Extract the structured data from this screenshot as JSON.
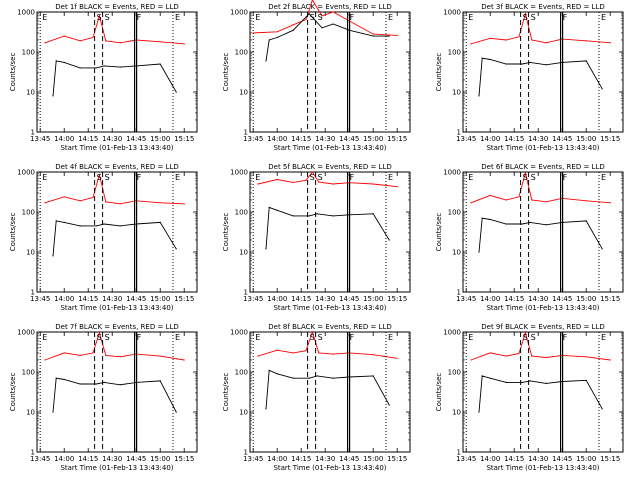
{
  "figure": {
    "rows": 3,
    "cols": 3
  },
  "chart_data": [
    {
      "type": "line",
      "title": "Det 1f BLACK = Events, RED = LLD",
      "xlabel": "Start Time (01-Feb-13 13:43:40)",
      "ylabel": "Counts/sec",
      "y_scale": "log",
      "ylim": [
        1,
        1000
      ],
      "yticks": [
        1,
        10,
        100,
        1000
      ],
      "x_tick_labels": [
        "13:45",
        "14:00",
        "14:15",
        "14:30",
        "14:45",
        "15:00",
        "15:15"
      ],
      "markers": [
        {
          "label": "E",
          "time": "13:45",
          "style": "dotted"
        },
        {
          "label": "S",
          "time": "14:19",
          "style": "dashed"
        },
        {
          "label": "S",
          "time": "14:24",
          "style": "dashed"
        },
        {
          "label": "F",
          "time": "14:44",
          "style": "solid"
        },
        {
          "label": "E",
          "time": "15:08",
          "style": "dotted"
        }
      ],
      "series": [
        {
          "color": "#ff0000",
          "x": [
            "13:48",
            "14:00",
            "14:10",
            "14:18",
            "14:22",
            "14:26",
            "14:35",
            "14:45",
            "15:00",
            "15:15"
          ],
          "values": [
            170,
            250,
            190,
            230,
            800,
            190,
            170,
            200,
            180,
            160
          ]
        },
        {
          "color": "#000000",
          "x": [
            "13:53",
            "13:55",
            "14:00",
            "14:10",
            "14:20",
            "14:25",
            "14:35",
            "14:45",
            "15:00",
            "15:10"
          ],
          "values": [
            8,
            60,
            55,
            40,
            40,
            45,
            42,
            45,
            50,
            10
          ]
        }
      ]
    },
    {
      "type": "line",
      "title": "Det 2f BLACK = Events, RED = LLD",
      "xlabel": "Start Time (01-Feb-13 13:43:40)",
      "ylabel": "Counts/sec",
      "y_scale": "log",
      "ylim": [
        1,
        1000
      ],
      "yticks": [
        1,
        10,
        100,
        1000
      ],
      "x_tick_labels": [
        "13:45",
        "14:00",
        "14:15",
        "14:30",
        "14:45",
        "15:00",
        "15:15"
      ],
      "markers": [
        {
          "label": "E",
          "time": "13:45",
          "style": "dotted"
        },
        {
          "label": "S",
          "time": "14:19",
          "style": "dashed"
        },
        {
          "label": "S",
          "time": "14:24",
          "style": "dashed"
        },
        {
          "label": "F",
          "time": "14:44",
          "style": "solid"
        },
        {
          "label": "E",
          "time": "15:08",
          "style": "dotted"
        }
      ],
      "series": [
        {
          "color": "#ff0000",
          "x": [
            "13:45",
            "14:00",
            "14:10",
            "14:18",
            "14:22",
            "14:28",
            "14:35",
            "14:45",
            "15:00",
            "15:15"
          ],
          "values": [
            300,
            320,
            480,
            650,
            2000,
            800,
            1000,
            600,
            280,
            260
          ]
        },
        {
          "color": "#000000",
          "x": [
            "13:53",
            "13:55",
            "14:00",
            "14:10",
            "14:20",
            "14:28",
            "14:35",
            "14:45",
            "15:00",
            "15:10"
          ],
          "values": [
            60,
            200,
            230,
            350,
            900,
            400,
            500,
            350,
            250,
            250
          ]
        }
      ]
    },
    {
      "type": "line",
      "title": "Det 3f BLACK = Events, RED = LLD",
      "xlabel": "Start Time (01-Feb-13 13:43:40)",
      "ylabel": "Counts/sec",
      "y_scale": "log",
      "ylim": [
        1,
        1000
      ],
      "yticks": [
        1,
        10,
        100,
        1000
      ],
      "x_tick_labels": [
        "13:45",
        "14:00",
        "14:15",
        "14:30",
        "14:45",
        "15:00",
        "15:15"
      ],
      "markers": [
        {
          "label": "E",
          "time": "13:45",
          "style": "dotted"
        },
        {
          "label": "S",
          "time": "14:19",
          "style": "dashed"
        },
        {
          "label": "S",
          "time": "14:24",
          "style": "dashed"
        },
        {
          "label": "F",
          "time": "14:44",
          "style": "solid"
        },
        {
          "label": "E",
          "time": "15:08",
          "style": "dotted"
        }
      ],
      "series": [
        {
          "color": "#ff0000",
          "x": [
            "13:48",
            "14:00",
            "14:10",
            "14:18",
            "14:22",
            "14:26",
            "14:35",
            "14:45",
            "15:00",
            "15:15"
          ],
          "values": [
            160,
            220,
            200,
            240,
            900,
            200,
            170,
            210,
            190,
            170
          ]
        },
        {
          "color": "#000000",
          "x": [
            "13:53",
            "13:55",
            "14:00",
            "14:10",
            "14:20",
            "14:25",
            "14:35",
            "14:45",
            "15:00",
            "15:10"
          ],
          "values": [
            8,
            70,
            65,
            50,
            50,
            55,
            48,
            55,
            60,
            12
          ]
        }
      ]
    },
    {
      "type": "line",
      "title": "Det 4f BLACK = Events, RED = LLD",
      "xlabel": "Start Time (01-Feb-13 13:43:40)",
      "ylabel": "Counts/sec",
      "y_scale": "log",
      "ylim": [
        1,
        1000
      ],
      "yticks": [
        1,
        10,
        100,
        1000
      ],
      "x_tick_labels": [
        "13:45",
        "14:00",
        "14:15",
        "14:30",
        "14:45",
        "15:00",
        "15:15"
      ],
      "markers": [
        {
          "label": "E",
          "time": "13:45",
          "style": "dotted"
        },
        {
          "label": "S",
          "time": "14:19",
          "style": "dashed"
        },
        {
          "label": "S",
          "time": "14:24",
          "style": "dashed"
        },
        {
          "label": "F",
          "time": "14:44",
          "style": "solid"
        },
        {
          "label": "E",
          "time": "15:08",
          "style": "dotted"
        }
      ],
      "series": [
        {
          "color": "#ff0000",
          "x": [
            "13:48",
            "14:00",
            "14:10",
            "14:18",
            "14:22",
            "14:26",
            "14:35",
            "14:45",
            "15:00",
            "15:15"
          ],
          "values": [
            170,
            240,
            190,
            230,
            850,
            180,
            160,
            190,
            170,
            160
          ]
        },
        {
          "color": "#000000",
          "x": [
            "13:53",
            "13:55",
            "14:00",
            "14:10",
            "14:20",
            "14:25",
            "14:35",
            "14:45",
            "15:00",
            "15:10"
          ],
          "values": [
            8,
            60,
            55,
            45,
            45,
            50,
            45,
            50,
            55,
            12
          ]
        }
      ]
    },
    {
      "type": "line",
      "title": "Det 5f BLACK = Events, RED = LLD",
      "xlabel": "Start Time (01-Feb-13 13:43:40)",
      "ylabel": "Counts/sec",
      "y_scale": "log",
      "ylim": [
        1,
        1000
      ],
      "yticks": [
        1,
        10,
        100,
        1000
      ],
      "x_tick_labels": [
        "13:45",
        "14:00",
        "14:15",
        "14:30",
        "14:45",
        "15:00",
        "15:15"
      ],
      "markers": [
        {
          "label": "E",
          "time": "13:45",
          "style": "dotted"
        },
        {
          "label": "S",
          "time": "14:19",
          "style": "dashed"
        },
        {
          "label": "S",
          "time": "14:24",
          "style": "dashed"
        },
        {
          "label": "F",
          "time": "14:44",
          "style": "solid"
        },
        {
          "label": "E",
          "time": "15:08",
          "style": "dotted"
        }
      ],
      "series": [
        {
          "color": "#ff0000",
          "x": [
            "13:48",
            "14:00",
            "14:10",
            "14:18",
            "14:22",
            "14:26",
            "14:35",
            "14:45",
            "15:00",
            "15:15"
          ],
          "values": [
            500,
            650,
            550,
            620,
            1000,
            560,
            500,
            540,
            500,
            430
          ]
        },
        {
          "color": "#000000",
          "x": [
            "13:53",
            "13:55",
            "14:00",
            "14:10",
            "14:20",
            "14:25",
            "14:35",
            "14:45",
            "15:00",
            "15:10"
          ],
          "values": [
            12,
            130,
            110,
            80,
            80,
            90,
            80,
            85,
            90,
            20
          ]
        }
      ]
    },
    {
      "type": "line",
      "title": "Det 6f BLACK = Events, RED = LLD",
      "xlabel": "Start Time (01-Feb-13 13:43:40)",
      "ylabel": "Counts/sec",
      "y_scale": "log",
      "ylim": [
        1,
        1000
      ],
      "yticks": [
        1,
        10,
        100,
        1000
      ],
      "x_tick_labels": [
        "13:45",
        "14:00",
        "14:15",
        "14:30",
        "14:45",
        "15:00",
        "15:15"
      ],
      "markers": [
        {
          "label": "E",
          "time": "13:45",
          "style": "dotted"
        },
        {
          "label": "S",
          "time": "14:19",
          "style": "dashed"
        },
        {
          "label": "S",
          "time": "14:24",
          "style": "dashed"
        },
        {
          "label": "F",
          "time": "14:44",
          "style": "solid"
        },
        {
          "label": "E",
          "time": "15:08",
          "style": "dotted"
        }
      ],
      "series": [
        {
          "color": "#ff0000",
          "x": [
            "13:48",
            "14:00",
            "14:10",
            "14:18",
            "14:22",
            "14:26",
            "14:35",
            "14:45",
            "15:00",
            "15:15"
          ],
          "values": [
            170,
            260,
            200,
            240,
            950,
            200,
            180,
            220,
            190,
            170
          ]
        },
        {
          "color": "#000000",
          "x": [
            "13:53",
            "13:55",
            "14:00",
            "14:10",
            "14:20",
            "14:25",
            "14:35",
            "14:45",
            "15:00",
            "15:10"
          ],
          "values": [
            10,
            70,
            65,
            50,
            50,
            55,
            48,
            55,
            60,
            12
          ]
        }
      ]
    },
    {
      "type": "line",
      "title": "Det 7f BLACK = Events, RED = LLD",
      "xlabel": "Start Time (01-Feb-13 13:43:40)",
      "ylabel": "Counts/sec",
      "y_scale": "log",
      "ylim": [
        1,
        1000
      ],
      "yticks": [
        1,
        10,
        100,
        1000
      ],
      "x_tick_labels": [
        "13:45",
        "14:00",
        "14:15",
        "14:30",
        "14:45",
        "15:00",
        "15:15"
      ],
      "markers": [
        {
          "label": "E",
          "time": "13:45",
          "style": "dotted"
        },
        {
          "label": "S",
          "time": "14:19",
          "style": "dashed"
        },
        {
          "label": "S",
          "time": "14:24",
          "style": "dashed"
        },
        {
          "label": "F",
          "time": "14:44",
          "style": "solid"
        },
        {
          "label": "E",
          "time": "15:08",
          "style": "dotted"
        }
      ],
      "series": [
        {
          "color": "#ff0000",
          "x": [
            "13:48",
            "14:00",
            "14:10",
            "14:18",
            "14:22",
            "14:26",
            "14:35",
            "14:45",
            "15:00",
            "15:15"
          ],
          "values": [
            200,
            300,
            260,
            300,
            950,
            260,
            240,
            280,
            250,
            200
          ]
        },
        {
          "color": "#000000",
          "x": [
            "13:53",
            "13:55",
            "14:00",
            "14:10",
            "14:20",
            "14:25",
            "14:35",
            "14:45",
            "15:00",
            "15:10"
          ],
          "values": [
            10,
            70,
            65,
            50,
            50,
            55,
            48,
            55,
            60,
            10
          ]
        }
      ]
    },
    {
      "type": "line",
      "title": "Det 8f BLACK = Events, RED = LLD",
      "xlabel": "Start Time (01-Feb-13 13:43:40)",
      "ylabel": "Counts/sec",
      "y_scale": "log",
      "ylim": [
        1,
        1000
      ],
      "yticks": [
        1,
        10,
        100,
        1000
      ],
      "x_tick_labels": [
        "13:45",
        "14:00",
        "14:15",
        "14:30",
        "14:45",
        "15:00",
        "15:15"
      ],
      "markers": [
        {
          "label": "E",
          "time": "13:45",
          "style": "dotted"
        },
        {
          "label": "S",
          "time": "14:19",
          "style": "dashed"
        },
        {
          "label": "S",
          "time": "14:24",
          "style": "dashed"
        },
        {
          "label": "F",
          "time": "14:44",
          "style": "solid"
        },
        {
          "label": "E",
          "time": "15:08",
          "style": "dotted"
        }
      ],
      "series": [
        {
          "color": "#ff0000",
          "x": [
            "13:48",
            "14:00",
            "14:10",
            "14:18",
            "14:22",
            "14:26",
            "14:35",
            "14:45",
            "15:00",
            "15:15"
          ],
          "values": [
            250,
            350,
            300,
            340,
            1000,
            300,
            280,
            300,
            270,
            220
          ]
        },
        {
          "color": "#000000",
          "x": [
            "13:53",
            "13:55",
            "14:00",
            "14:10",
            "14:20",
            "14:25",
            "14:35",
            "14:45",
            "15:00",
            "15:10"
          ],
          "values": [
            12,
            110,
            90,
            70,
            70,
            80,
            70,
            75,
            80,
            15
          ]
        }
      ]
    },
    {
      "type": "line",
      "title": "Det 9f BLACK = Events, RED = LLD",
      "xlabel": "Start Time (01-Feb-13 13:43:40)",
      "ylabel": "Counts/sec",
      "y_scale": "log",
      "ylim": [
        1,
        1000
      ],
      "yticks": [
        1,
        10,
        100,
        1000
      ],
      "x_tick_labels": [
        "13:45",
        "14:00",
        "14:15",
        "14:30",
        "14:45",
        "15:00",
        "15:15"
      ],
      "markers": [
        {
          "label": "E",
          "time": "13:45",
          "style": "dotted"
        },
        {
          "label": "S",
          "time": "14:19",
          "style": "dashed"
        },
        {
          "label": "S",
          "time": "14:24",
          "style": "dashed"
        },
        {
          "label": "F",
          "time": "14:44",
          "style": "solid"
        },
        {
          "label": "E",
          "time": "15:08",
          "style": "dotted"
        }
      ],
      "series": [
        {
          "color": "#ff0000",
          "x": [
            "13:48",
            "14:00",
            "14:10",
            "14:18",
            "14:22",
            "14:26",
            "14:35",
            "14:45",
            "15:00",
            "15:15"
          ],
          "values": [
            200,
            300,
            250,
            290,
            950,
            250,
            230,
            260,
            240,
            200
          ]
        },
        {
          "color": "#000000",
          "x": [
            "13:53",
            "13:55",
            "14:00",
            "14:10",
            "14:20",
            "14:25",
            "14:35",
            "14:45",
            "15:00",
            "15:10"
          ],
          "values": [
            10,
            80,
            70,
            55,
            55,
            60,
            52,
            58,
            62,
            12
          ]
        }
      ]
    }
  ]
}
